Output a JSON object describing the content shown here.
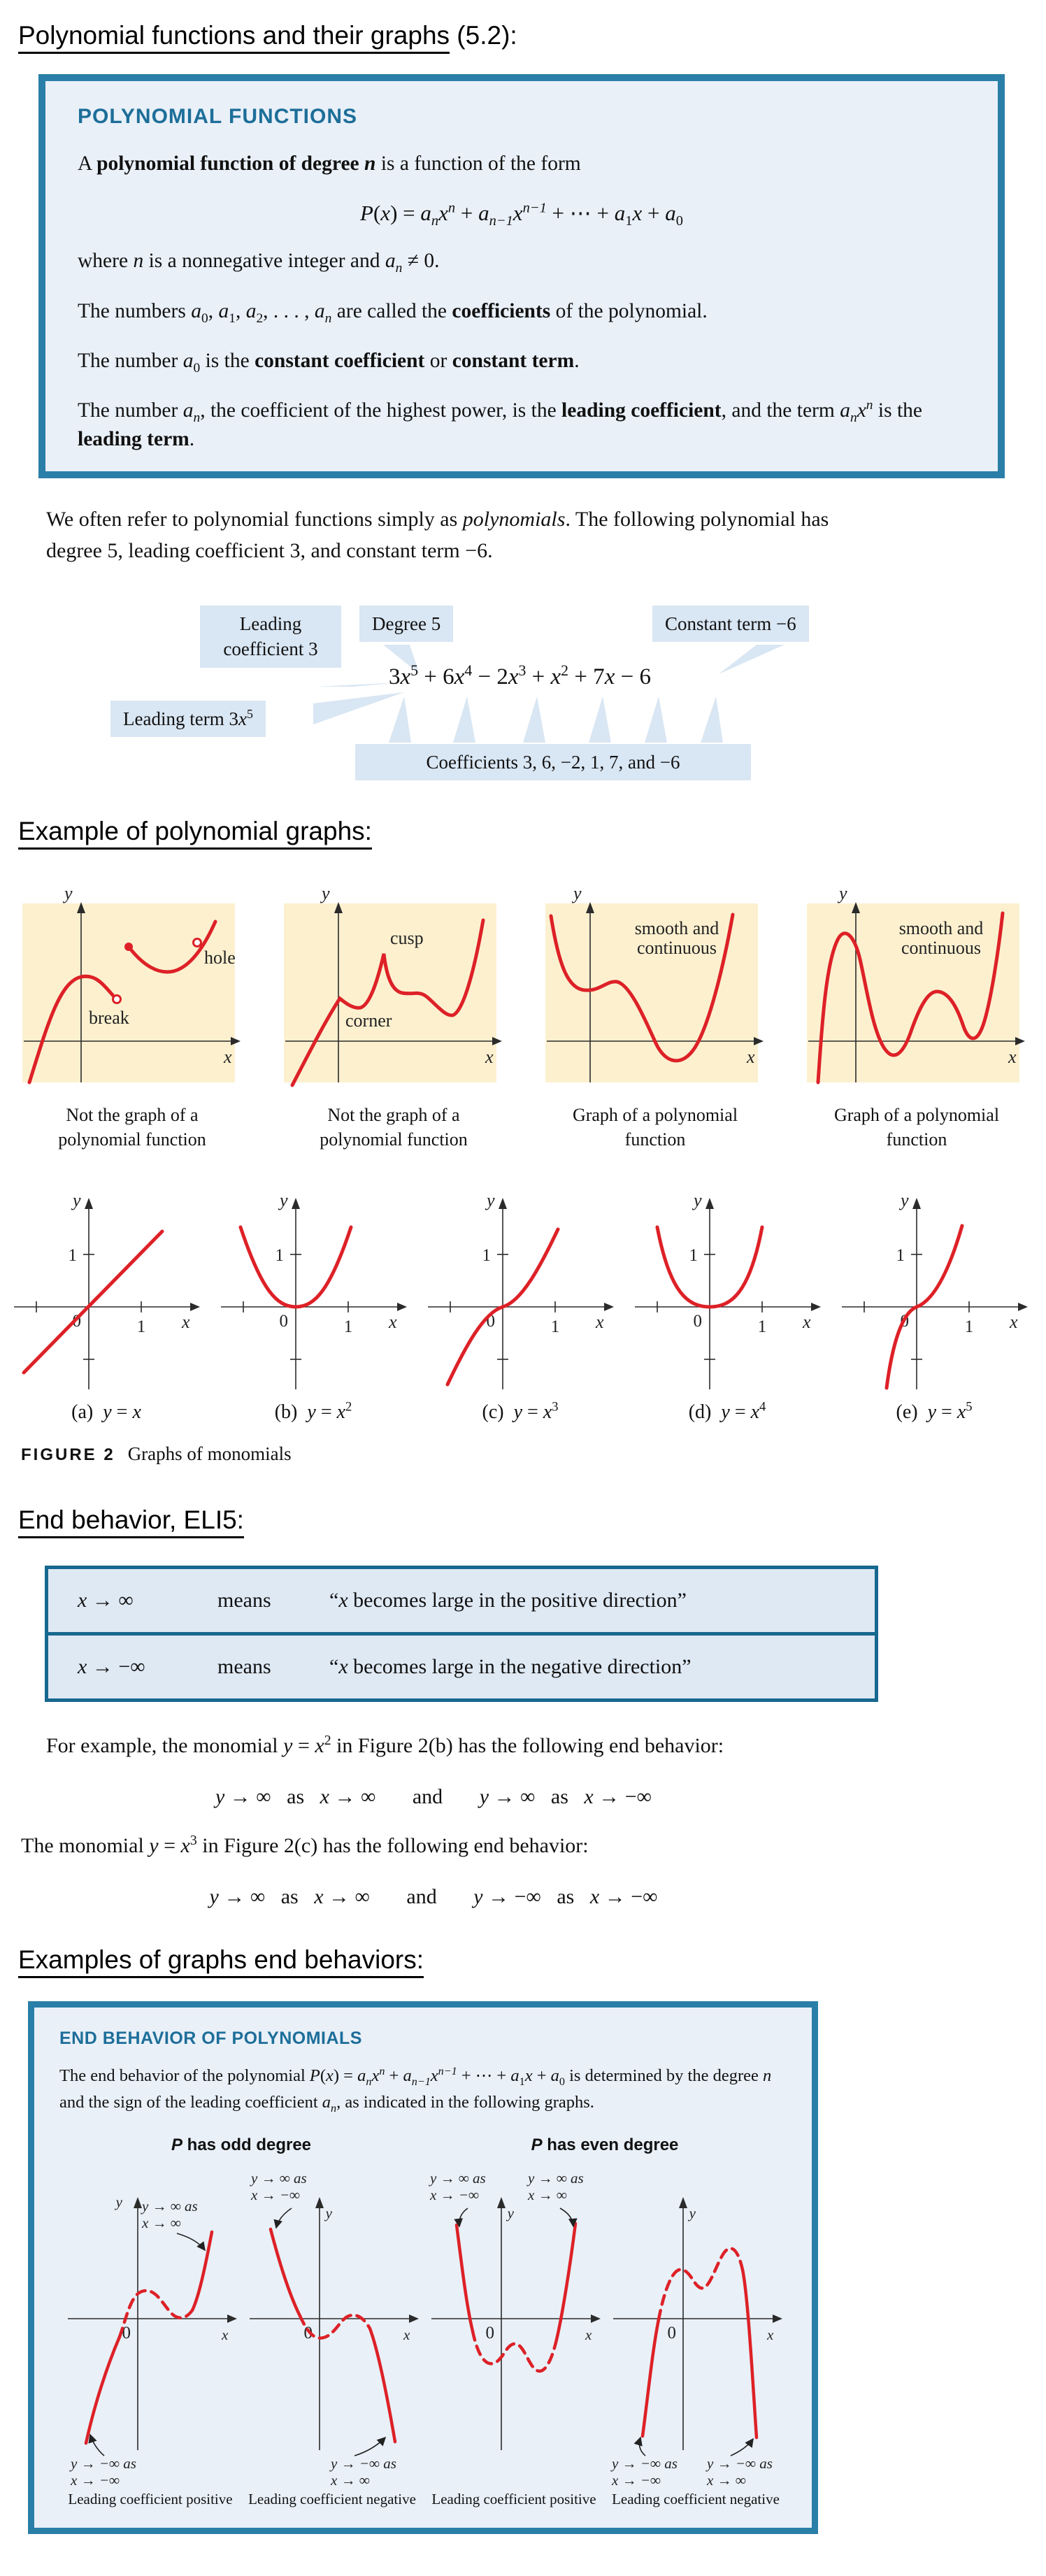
{
  "colors": {
    "teal_border": "#2a7fa8",
    "teal_text": "#1d6e99",
    "box_blue": "#e9f0f8",
    "callout_blue": "#d9e6f3",
    "def_border": "#17688f",
    "def_blue": "#dfe9f4",
    "panel_beige": "#fcf0cf",
    "curve_red": "#dd2127"
  },
  "page": {
    "title": "Polynomial functions and their graphs",
    "title_suffix": " (5.2):"
  },
  "definition_box": {
    "heading": "POLYNOMIAL FUNCTIONS",
    "intro": [
      {
        "t": "A "
      },
      {
        "t": "polynomial function of degree ",
        "f": [
          "b"
        ]
      },
      {
        "t": "n",
        "f": [
          "b",
          "i"
        ]
      },
      {
        "t": " is a function of the form"
      }
    ],
    "formula": [
      {
        "t": "P",
        "f": [
          "i"
        ]
      },
      {
        "t": "("
      },
      {
        "t": "x",
        "f": [
          "i"
        ]
      },
      {
        "t": ") = "
      },
      {
        "t": "a",
        "f": [
          "i"
        ]
      },
      {
        "t": "n",
        "f": [
          "sub",
          "i"
        ]
      },
      {
        "t": "x",
        "f": [
          "i"
        ]
      },
      {
        "t": "n",
        "f": [
          "sup",
          "i"
        ]
      },
      {
        "t": " + "
      },
      {
        "t": "a",
        "f": [
          "i"
        ]
      },
      {
        "t": "n−1",
        "f": [
          "sub",
          "i"
        ]
      },
      {
        "t": "x",
        "f": [
          "i"
        ]
      },
      {
        "t": "n−1",
        "f": [
          "sup",
          "i"
        ]
      },
      {
        "t": " + ⋯ + "
      },
      {
        "t": "a",
        "f": [
          "i"
        ]
      },
      {
        "t": "1",
        "f": [
          "sub"
        ]
      },
      {
        "t": "x",
        "f": [
          "i"
        ]
      },
      {
        "t": " + "
      },
      {
        "t": "a",
        "f": [
          "i"
        ]
      },
      {
        "t": "0",
        "f": [
          "sub"
        ]
      }
    ],
    "where": [
      {
        "t": "where "
      },
      {
        "t": "n",
        "f": [
          "i"
        ]
      },
      {
        "t": " is a nonnegative integer and "
      },
      {
        "t": "a",
        "f": [
          "i"
        ]
      },
      {
        "t": "n",
        "f": [
          "sub",
          "i"
        ]
      },
      {
        "t": " ≠ 0."
      }
    ],
    "p1": [
      {
        "t": "The numbers "
      },
      {
        "t": "a",
        "f": [
          "i"
        ]
      },
      {
        "t": "0",
        "f": [
          "sub"
        ]
      },
      {
        "t": ", "
      },
      {
        "t": "a",
        "f": [
          "i"
        ]
      },
      {
        "t": "1",
        "f": [
          "sub"
        ]
      },
      {
        "t": ", "
      },
      {
        "t": "a",
        "f": [
          "i"
        ]
      },
      {
        "t": "2",
        "f": [
          "sub"
        ]
      },
      {
        "t": ", . . . , "
      },
      {
        "t": "a",
        "f": [
          "i"
        ]
      },
      {
        "t": "n",
        "f": [
          "sub",
          "i"
        ]
      },
      {
        "t": " are called the "
      },
      {
        "t": "coefficients",
        "f": [
          "b"
        ]
      },
      {
        "t": " of the polynomial."
      }
    ],
    "p2": [
      {
        "t": "The number "
      },
      {
        "t": "a",
        "f": [
          "i"
        ]
      },
      {
        "t": "0",
        "f": [
          "sub"
        ]
      },
      {
        "t": " is the "
      },
      {
        "t": "constant coefficient",
        "f": [
          "b"
        ]
      },
      {
        "t": " or "
      },
      {
        "t": "constant term",
        "f": [
          "b"
        ]
      },
      {
        "t": "."
      }
    ],
    "p3": [
      {
        "t": "The number "
      },
      {
        "t": "a",
        "f": [
          "i"
        ]
      },
      {
        "t": "n",
        "f": [
          "sub",
          "i"
        ]
      },
      {
        "t": ", the coefficient of the highest power, is the "
      },
      {
        "t": "leading coefficient",
        "f": [
          "b"
        ]
      },
      {
        "t": ", and the term "
      },
      {
        "t": "a",
        "f": [
          "i"
        ]
      },
      {
        "t": "n",
        "f": [
          "sub",
          "i"
        ]
      },
      {
        "t": "x",
        "f": [
          "i"
        ]
      },
      {
        "t": "n",
        "f": [
          "sup",
          "i"
        ]
      },
      {
        "t": " is the "
      },
      {
        "t": "leading term",
        "f": [
          "b"
        ]
      },
      {
        "t": "."
      }
    ]
  },
  "intro_paragraph": [
    {
      "t": "We often refer to polynomial functions simply as "
    },
    {
      "t": "polynomials",
      "f": [
        "i"
      ]
    },
    {
      "t": ". The following polynomial has degree 5, leading coefficient 3, and constant term −6."
    }
  ],
  "diagram": {
    "leading_coefficient": [
      {
        "t": "Leading coefficient 3"
      }
    ],
    "degree": "Degree 5",
    "constant_term": "Constant term −6",
    "leading_term": [
      {
        "t": "Leading term 3"
      },
      {
        "t": "x",
        "f": [
          "i"
        ]
      },
      {
        "t": "5",
        "f": [
          "sup"
        ]
      }
    ],
    "coefficients": "Coefficients 3, 6, −2, 1, 7, and −6",
    "formula": [
      {
        "t": "3"
      },
      {
        "t": "x",
        "f": [
          "i"
        ]
      },
      {
        "t": "5",
        "f": [
          "sup"
        ]
      },
      {
        "t": " + 6"
      },
      {
        "t": "x",
        "f": [
          "i"
        ]
      },
      {
        "t": "4",
        "f": [
          "sup"
        ]
      },
      {
        "t": " − 2"
      },
      {
        "t": "x",
        "f": [
          "i"
        ]
      },
      {
        "t": "3",
        "f": [
          "sup"
        ]
      },
      {
        "t": " + "
      },
      {
        "t": "x",
        "f": [
          "i"
        ]
      },
      {
        "t": "2",
        "f": [
          "sup"
        ]
      },
      {
        "t": " + 7"
      },
      {
        "t": "x",
        "f": [
          "i"
        ]
      },
      {
        "t": " − 6"
      }
    ]
  },
  "graphs_heading": "Example of polynomial graphs:",
  "panel_graphs": {
    "labels": {
      "y": "y",
      "x": "x",
      "break": "break",
      "hole": "hole",
      "cusp": "cusp",
      "corner": "corner",
      "smooth1": "smooth and",
      "smooth2": "continuous"
    },
    "captions": [
      [
        "Not the graph of a",
        "polynomial function"
      ],
      [
        "Not the graph of a",
        "polynomial function"
      ],
      [
        "Graph of a polynomial",
        "function"
      ],
      [
        "Graph of a polynomial",
        "function"
      ]
    ]
  },
  "monomials": {
    "axis": {
      "y": "y",
      "x": "x",
      "zero": "0",
      "one": "1"
    },
    "captions": [
      [
        {
          "t": "(a)  "
        },
        {
          "t": "y",
          "f": [
            "i"
          ]
        },
        {
          "t": " = "
        },
        {
          "t": "x",
          "f": [
            "i"
          ]
        }
      ],
      [
        {
          "t": "(b)  "
        },
        {
          "t": "y",
          "f": [
            "i"
          ]
        },
        {
          "t": " = "
        },
        {
          "t": "x",
          "f": [
            "i"
          ]
        },
        {
          "t": "2",
          "f": [
            "sup"
          ]
        }
      ],
      [
        {
          "t": "(c)  "
        },
        {
          "t": "y",
          "f": [
            "i"
          ]
        },
        {
          "t": " = "
        },
        {
          "t": "x",
          "f": [
            "i"
          ]
        },
        {
          "t": "3",
          "f": [
            "sup"
          ]
        }
      ],
      [
        {
          "t": "(d)  "
        },
        {
          "t": "y",
          "f": [
            "i"
          ]
        },
        {
          "t": " = "
        },
        {
          "t": "x",
          "f": [
            "i"
          ]
        },
        {
          "t": "4",
          "f": [
            "sup"
          ]
        }
      ],
      [
        {
          "t": "(e)  "
        },
        {
          "t": "y",
          "f": [
            "i"
          ]
        },
        {
          "t": " = "
        },
        {
          "t": "x",
          "f": [
            "i"
          ]
        },
        {
          "t": "5",
          "f": [
            "sup"
          ]
        }
      ]
    ],
    "figure_label": "FIGURE 2",
    "figure_caption": "Graphs of monomials"
  },
  "end_behavior": {
    "heading": "End behavior, ELI5:",
    "def_rows": [
      {
        "sym": [
          {
            "t": "x",
            "f": [
              "i"
            ]
          },
          {
            "t": " → ∞"
          }
        ],
        "means": "means",
        "desc": [
          {
            "t": "“"
          },
          {
            "t": "x",
            "f": [
              "i"
            ]
          },
          {
            "t": " becomes large in the positive direction”"
          }
        ]
      },
      {
        "sym": [
          {
            "t": "x",
            "f": [
              "i"
            ]
          },
          {
            "t": " → −∞"
          }
        ],
        "means": "means",
        "desc": [
          {
            "t": "“"
          },
          {
            "t": "x",
            "f": [
              "i"
            ]
          },
          {
            "t": " becomes large in the negative direction”"
          }
        ]
      }
    ],
    "para1": [
      {
        "t": "For example, the monomial "
      },
      {
        "t": "y",
        "f": [
          "i"
        ]
      },
      {
        "t": " = "
      },
      {
        "t": "x",
        "f": [
          "i"
        ]
      },
      {
        "t": "2",
        "f": [
          "sup"
        ]
      },
      {
        "t": " in Figure 2(b) has the following end behavior:"
      }
    ],
    "line1": [
      {
        "t": "y",
        "f": [
          "i"
        ]
      },
      {
        "t": " → ∞   as   "
      },
      {
        "t": "x",
        "f": [
          "i"
        ]
      },
      {
        "t": " → ∞       and       "
      },
      {
        "t": "y",
        "f": [
          "i"
        ]
      },
      {
        "t": " → ∞   as   "
      },
      {
        "t": "x",
        "f": [
          "i"
        ]
      },
      {
        "t": " → −∞"
      }
    ],
    "para2": [
      {
        "t": "The monomial "
      },
      {
        "t": "y",
        "f": [
          "i"
        ]
      },
      {
        "t": " = "
      },
      {
        "t": "x",
        "f": [
          "i"
        ]
      },
      {
        "t": "3",
        "f": [
          "sup"
        ]
      },
      {
        "t": " in Figure 2(c) has the following end behavior:"
      }
    ],
    "line2": [
      {
        "t": "y",
        "f": [
          "i"
        ]
      },
      {
        "t": " → ∞   as   "
      },
      {
        "t": "x",
        "f": [
          "i"
        ]
      },
      {
        "t": " → ∞       and       "
      },
      {
        "t": "y",
        "f": [
          "i"
        ]
      },
      {
        "t": " → −∞   as   "
      },
      {
        "t": "x",
        "f": [
          "i"
        ]
      },
      {
        "t": " → −∞"
      }
    ]
  },
  "behaviors_heading": "Examples of graphs end behaviors:",
  "behavior_box": {
    "title": "END BEHAVIOR OF POLYNOMIALS",
    "body": [
      {
        "t": "The end behavior of the polynomial "
      },
      {
        "t": "P",
        "f": [
          "i"
        ]
      },
      {
        "t": "("
      },
      {
        "t": "x",
        "f": [
          "i"
        ]
      },
      {
        "t": ") = "
      },
      {
        "t": "a",
        "f": [
          "i"
        ]
      },
      {
        "t": "n",
        "f": [
          "sub",
          "i"
        ]
      },
      {
        "t": "x",
        "f": [
          "i"
        ]
      },
      {
        "t": "n",
        "f": [
          "sup",
          "i"
        ]
      },
      {
        "t": " + "
      },
      {
        "t": "a",
        "f": [
          "i"
        ]
      },
      {
        "t": "n−1",
        "f": [
          "sub",
          "i"
        ]
      },
      {
        "t": "x",
        "f": [
          "i"
        ]
      },
      {
        "t": "n−1",
        "f": [
          "sup",
          "i"
        ]
      },
      {
        "t": " + ⋯ + "
      },
      {
        "t": "a",
        "f": [
          "i"
        ]
      },
      {
        "t": "1",
        "f": [
          "sub"
        ]
      },
      {
        "t": "x",
        "f": [
          "i"
        ]
      },
      {
        "t": " + "
      },
      {
        "t": "a",
        "f": [
          "i"
        ]
      },
      {
        "t": "0",
        "f": [
          "sub"
        ]
      },
      {
        "t": " is determined by the degree "
      },
      {
        "t": "n",
        "f": [
          "i"
        ]
      },
      {
        "t": " and the sign of the leading coefficient "
      },
      {
        "t": "a",
        "f": [
          "i"
        ]
      },
      {
        "t": "n",
        "f": [
          "sub",
          "i"
        ]
      },
      {
        "t": ", as indicated in the following graphs."
      }
    ],
    "odd_header": [
      {
        "t": "P",
        "f": [
          "i"
        ]
      },
      {
        "t": " has odd degree"
      }
    ],
    "even_header": [
      {
        "t": "P",
        "f": [
          "i"
        ]
      },
      {
        "t": " has even degree"
      }
    ],
    "axis": {
      "y": "y",
      "x": "x",
      "zero": "0"
    },
    "graphs": [
      {
        "top_right": [
          "y → ∞ as",
          "x → ∞"
        ],
        "bottom_left": [
          "y → −∞ as",
          "x → −∞"
        ],
        "caption": "Leading coefficient positive"
      },
      {
        "top_left": [
          "y → ∞ as",
          "x → −∞"
        ],
        "bottom_right": [
          "y → −∞ as",
          "x → ∞"
        ],
        "caption": "Leading coefficient negative"
      },
      {
        "top_left": [
          "y → ∞ as",
          "x → −∞"
        ],
        "top_right": [
          "y → ∞ as",
          "x → ∞"
        ],
        "caption": "Leading coefficient positive"
      },
      {
        "bottom_left": [
          "y → −∞ as",
          "x → −∞"
        ],
        "bottom_right": [
          "y → −∞ as",
          "x → ∞"
        ],
        "caption": "Leading coefficient negative"
      }
    ]
  }
}
